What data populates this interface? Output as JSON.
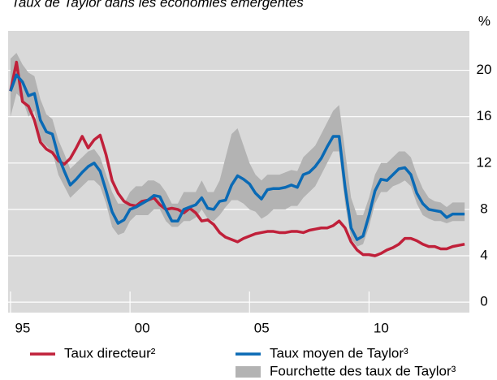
{
  "chart_data": {
    "type": "line",
    "title": "Taux de Taylor dans les économies émergentes",
    "y_label": "%",
    "x": [
      1995,
      1995.25,
      1995.5,
      1995.75,
      1996,
      1996.25,
      1996.5,
      1996.75,
      1997,
      1997.25,
      1997.5,
      1997.75,
      1998,
      1998.25,
      1998.5,
      1998.75,
      1999,
      1999.25,
      1999.5,
      1999.75,
      2000,
      2000.25,
      2000.5,
      2000.75,
      2001,
      2001.25,
      2001.5,
      2001.75,
      2002,
      2002.25,
      2002.5,
      2002.75,
      2003,
      2003.25,
      2003.5,
      2003.75,
      2004,
      2004.25,
      2004.5,
      2004.75,
      2005,
      2005.25,
      2005.5,
      2005.75,
      2006,
      2006.25,
      2006.5,
      2006.75,
      2007,
      2007.25,
      2007.5,
      2007.75,
      2008,
      2008.25,
      2008.5,
      2008.75,
      2009,
      2009.25,
      2009.5,
      2009.75,
      2010,
      2010.25,
      2010.5,
      2010.75,
      2011,
      2011.25,
      2011.5,
      2011.75,
      2012,
      2012.25,
      2012.5,
      2012.75,
      2013,
      2013.25,
      2013.5,
      2013.75,
      2014
    ],
    "series": [
      {
        "name": "Taux directeur²",
        "color": "#c0203a",
        "values": [
          18.2,
          20.7,
          17.3,
          16.9,
          15.7,
          13.8,
          13.2,
          12.9,
          12.2,
          11.9,
          12.4,
          13.3,
          14.3,
          13.3,
          14.0,
          14.4,
          12.7,
          10.5,
          9.4,
          8.7,
          8.4,
          8.3,
          8.7,
          8.8,
          9.0,
          8.4,
          8.0,
          8.1,
          8.0,
          7.7,
          8.1,
          7.7,
          7.0,
          7.1,
          6.7,
          6.0,
          5.6,
          5.4,
          5.2,
          5.5,
          5.7,
          5.9,
          6.0,
          6.1,
          6.1,
          6.0,
          6.0,
          6.1,
          6.1,
          6.0,
          6.2,
          6.3,
          6.4,
          6.4,
          6.6,
          7.0,
          6.4,
          5.2,
          4.5,
          4.1,
          4.1,
          4.0,
          4.2,
          4.5,
          4.7,
          5.0,
          5.5,
          5.5,
          5.3,
          5.0,
          4.8,
          4.8,
          4.6,
          4.6,
          4.8,
          4.9,
          5.0
        ]
      },
      {
        "name": "Taux moyen de Taylor³",
        "color": "#0a6ab5",
        "values": [
          18.2,
          19.6,
          19.0,
          17.8,
          18.0,
          15.7,
          14.7,
          14.5,
          12.6,
          11.3,
          10.1,
          10.6,
          11.2,
          11.7,
          12.0,
          11.3,
          9.6,
          7.8,
          6.8,
          7.1,
          8.0,
          8.2,
          8.5,
          8.8,
          9.2,
          9.1,
          8.0,
          7.0,
          7.0,
          8.0,
          8.2,
          8.4,
          9.0,
          8.1,
          8.0,
          8.7,
          8.8,
          10.1,
          10.9,
          10.6,
          10.2,
          9.4,
          8.9,
          9.7,
          9.8,
          9.8,
          9.9,
          10.1,
          9.9,
          11.0,
          11.2,
          11.7,
          12.4,
          13.4,
          14.3,
          14.3,
          9.9,
          6.4,
          5.4,
          5.7,
          7.5,
          9.6,
          10.6,
          10.5,
          11.0,
          11.5,
          11.6,
          11.0,
          9.4,
          8.5,
          8.0,
          7.9,
          7.8,
          7.3,
          7.6,
          7.6,
          7.6
        ]
      },
      {
        "name": "Fourchette des taux de Taylor³",
        "color": "#b3b3b3",
        "type": "band",
        "low": [
          16,
          18,
          17.5,
          16,
          16.5,
          14,
          13.5,
          13,
          11,
          10,
          9,
          9.5,
          10,
          10.5,
          10.5,
          10,
          8.5,
          6.5,
          5.8,
          6,
          7,
          7.5,
          7.5,
          7.5,
          8,
          8,
          7,
          6.5,
          6.5,
          7,
          7,
          7.3,
          8,
          7.2,
          7,
          7.5,
          8.2,
          8.8,
          8.8,
          8.5,
          8,
          7.8,
          7.2,
          7.5,
          8,
          8,
          8,
          8.3,
          8.3,
          9,
          9.5,
          10,
          11,
          12,
          13,
          13,
          8.5,
          5.5,
          4.8,
          5,
          6.5,
          8.5,
          9.5,
          9.5,
          10,
          10.2,
          10.5,
          10,
          8.5,
          7.5,
          7.2,
          7,
          7,
          6.8,
          7,
          7,
          7
        ],
        "high": [
          21,
          21.5,
          20.5,
          19.8,
          19.5,
          17.5,
          16.2,
          15.8,
          14,
          12.8,
          11.5,
          12,
          12.5,
          13,
          13.2,
          12.5,
          11,
          9.5,
          8.5,
          8.5,
          9.5,
          10,
          10,
          10.5,
          10.5,
          10.2,
          9.5,
          8.5,
          8.5,
          9.5,
          9.5,
          9.5,
          10.5,
          9.5,
          9.5,
          10.5,
          12.5,
          14.5,
          15,
          13.5,
          12,
          11,
          10.5,
          11,
          11,
          11,
          11.2,
          11.4,
          11.3,
          12.5,
          13,
          13.5,
          14.5,
          15.5,
          16.5,
          17,
          13,
          9,
          7.5,
          7.5,
          9,
          11,
          12,
          12,
          12.5,
          13,
          13,
          12.5,
          11,
          9.8,
          9,
          8.7,
          8.6,
          8.2,
          8.6,
          8.6,
          8.6
        ]
      }
    ],
    "xlim": [
      1994.9,
      2014.2
    ],
    "xticks": [
      {
        "value": 1995,
        "label": "95"
      },
      {
        "value": 2000,
        "label": "00"
      },
      {
        "value": 2005,
        "label": "05"
      },
      {
        "value": 2010,
        "label": "10"
      }
    ],
    "ylim": [
      -0.9,
      23.4
    ],
    "yticks": [
      0,
      4,
      8,
      12,
      16,
      20
    ],
    "grid": true,
    "plot_background": "#d9d9d9"
  }
}
